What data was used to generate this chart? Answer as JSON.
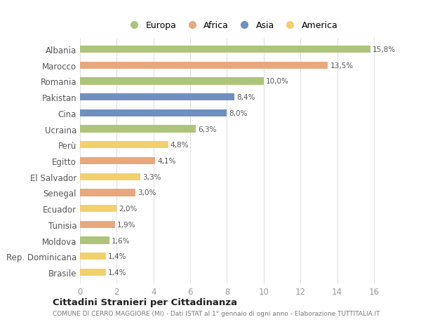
{
  "countries": [
    "Albania",
    "Marocco",
    "Romania",
    "Pakistan",
    "Cina",
    "Ucraina",
    "Perù",
    "Egitto",
    "El Salvador",
    "Senegal",
    "Ecuador",
    "Tunisia",
    "Moldova",
    "Rep. Dominicana",
    "Brasile"
  ],
  "values": [
    15.8,
    13.5,
    10.0,
    8.4,
    8.0,
    6.3,
    4.8,
    4.1,
    3.3,
    3.0,
    2.0,
    1.9,
    1.6,
    1.4,
    1.4
  ],
  "continents": [
    "Europa",
    "Africa",
    "Europa",
    "Asia",
    "Asia",
    "Europa",
    "America",
    "Africa",
    "America",
    "Africa",
    "America",
    "Africa",
    "Europa",
    "America",
    "America"
  ],
  "colors": {
    "Europa": "#adc47a",
    "Africa": "#e8a87c",
    "Asia": "#6f8fc0",
    "America": "#f2d06b"
  },
  "legend_order": [
    "Europa",
    "Africa",
    "Asia",
    "America"
  ],
  "title": "Cittadini Stranieri per Cittadinanza",
  "subtitle": "COMUNE DI CERRO MAGGIORE (MI) - Dati ISTAT al 1° gennaio di ogni anno - Elaborazione TUTTITALIA.IT",
  "xlim": [
    0,
    16.5
  ],
  "xticks": [
    0,
    2,
    4,
    6,
    8,
    10,
    12,
    14,
    16
  ],
  "background_color": "#ffffff",
  "bar_height": 0.45
}
